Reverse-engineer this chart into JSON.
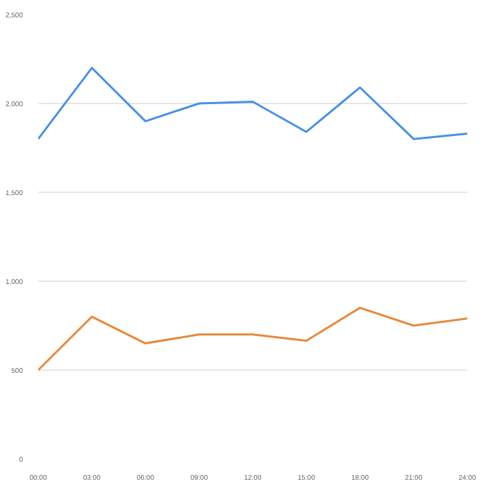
{
  "chart_data": {
    "type": "line",
    "x": [
      0,
      3,
      6,
      9,
      12,
      15,
      18,
      21,
      24
    ],
    "xlim": [
      0,
      24
    ],
    "xticks": [
      {
        "value": 0,
        "label": "00:00"
      },
      {
        "value": 3,
        "label": "03:00"
      },
      {
        "value": 6,
        "label": "06:00"
      },
      {
        "value": 9,
        "label": "09:00"
      },
      {
        "value": 12,
        "label": "12:00"
      },
      {
        "value": 15,
        "label": "15:00"
      },
      {
        "value": 18,
        "label": "18:00"
      },
      {
        "value": 21,
        "label": "21:00"
      },
      {
        "value": 24,
        "label": "24:00"
      }
    ],
    "ylim": [
      0,
      2500
    ],
    "yticks": [
      0,
      {
        "value": 500,
        "label": "500"
      },
      {
        "value": 1000,
        "label": "1,000"
      },
      {
        "value": 1500,
        "label": "1,500"
      },
      {
        "value": 2000,
        "label": "2,000"
      },
      {
        "value": 2500,
        "label": "2,500"
      }
    ],
    "grid": "y",
    "line_style": "solid",
    "series": [
      {
        "color": "#4a90e2",
        "values": [
          1800,
          2200,
          1900,
          2000,
          2010,
          1840,
          2090,
          1800,
          1830
        ]
      },
      {
        "color": "#e8883a",
        "values": [
          500,
          800,
          650,
          700,
          700,
          665,
          850,
          750,
          790
        ]
      }
    ]
  }
}
